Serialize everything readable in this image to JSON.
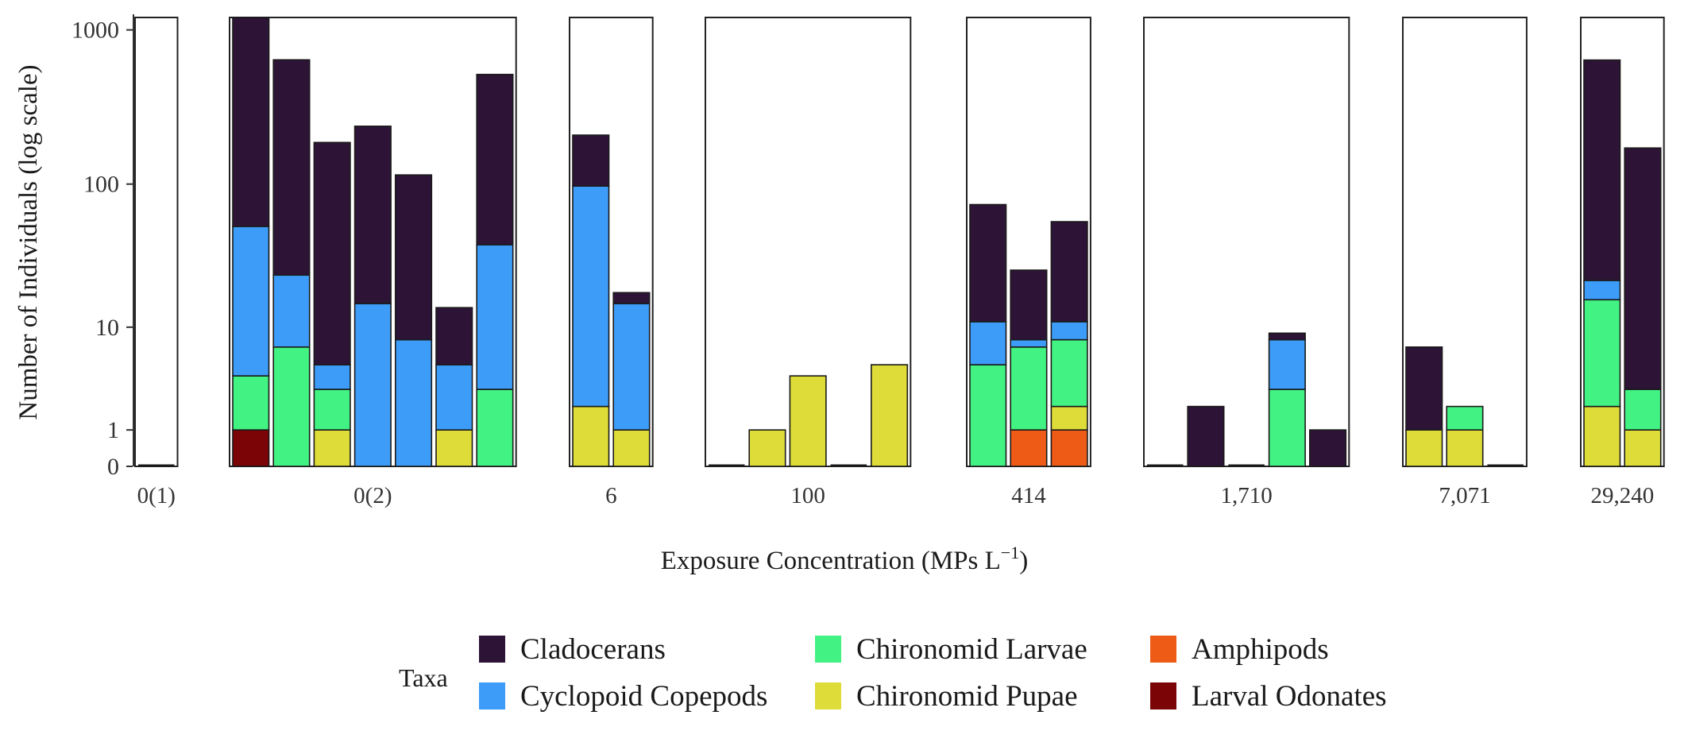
{
  "chart_data": {
    "type": "bar",
    "stacked": true,
    "title": "",
    "xlabel": "Exposure Concentration (MPs L",
    "xlabel_superscript": "−1",
    "xlabel_suffix": ")",
    "ylabel": "Number of Individuals (log scale)",
    "y_scale": "log1p",
    "ylim": [
      0,
      1200
    ],
    "y_ticks": [
      0,
      1,
      10,
      100,
      1000
    ],
    "y_tick_labels": [
      "0",
      "1",
      "10",
      "100",
      "1000"
    ],
    "grid": false,
    "legend": {
      "title": "Taxa",
      "placement": "bottom"
    },
    "taxa": [
      {
        "name": "Cladocerans",
        "color": "#2d1437"
      },
      {
        "name": "Cyclopoid Copepods",
        "color": "#3d9cf7"
      },
      {
        "name": "Chironomid Larvae",
        "color": "#42f282"
      },
      {
        "name": "Chironomid Pupae",
        "color": "#dddc38"
      },
      {
        "name": "Amphipods",
        "color": "#ee5b16"
      },
      {
        "name": "Larval Odonates",
        "color": "#7a0406"
      }
    ],
    "stack_order": [
      "Larval Odonates",
      "Amphipods",
      "Chironomid Pupae",
      "Chironomid Larvae",
      "Cyclopoid Copepods",
      "Cladocerans"
    ],
    "panels": [
      {
        "label": "0(1)",
        "replicates": [
          {
            "Cladocerans": 0
          }
        ]
      },
      {
        "label": "0(2)",
        "replicates": [
          {
            "Larval Odonates": 1,
            "Chironomid Larvae": 3,
            "Cyclopoid Copepods": 48,
            "Cladocerans": 1150
          },
          {
            "Chironomid Larvae": 7,
            "Cyclopoid Copepods": 17,
            "Cladocerans": 620
          },
          {
            "Chironomid Pupae": 1,
            "Chironomid Larvae": 2,
            "Cyclopoid Copepods": 2,
            "Cladocerans": 183
          },
          {
            "Cyclopoid Copepods": 15,
            "Cladocerans": 225
          },
          {
            "Cyclopoid Copepods": 8,
            "Cladocerans": 107
          },
          {
            "Chironomid Pupae": 1,
            "Cyclopoid Copepods": 4,
            "Cladocerans": 9
          },
          {
            "Chironomid Larvae": 3,
            "Cyclopoid Copepods": 36,
            "Cladocerans": 480
          }
        ]
      },
      {
        "label": "6",
        "replicates": [
          {
            "Chironomid Pupae": 2,
            "Cyclopoid Copepods": 95,
            "Cladocerans": 113
          },
          {
            "Chironomid Pupae": 1,
            "Cyclopoid Copepods": 14,
            "Cladocerans": 3
          }
        ]
      },
      {
        "label": "100",
        "replicates": [
          {
            "Chironomid Pupae": 0
          },
          {
            "Chironomid Pupae": 1
          },
          {
            "Chironomid Pupae": 4
          },
          {
            "Chironomid Pupae": 0
          },
          {
            "Chironomid Pupae": 5
          }
        ]
      },
      {
        "label": "414",
        "replicates": [
          {
            "Chironomid Larvae": 5,
            "Cyclopoid Copepods": 6,
            "Cladocerans": 62
          },
          {
            "Amphipods": 1,
            "Chironomid Larvae": 6,
            "Cyclopoid Copepods": 1,
            "Cladocerans": 18
          },
          {
            "Amphipods": 1,
            "Chironomid Pupae": 1,
            "Chironomid Larvae": 6,
            "Cyclopoid Copepods": 3,
            "Cladocerans": 45
          }
        ]
      },
      {
        "label": "1,710",
        "replicates": [
          {
            "Cladocerans": 0
          },
          {
            "Cladocerans": 2
          },
          {
            "Cladocerans": 0
          },
          {
            "Chironomid Larvae": 3,
            "Cyclopoid Copepods": 5,
            "Cladocerans": 1
          },
          {
            "Cladocerans": 1
          }
        ]
      },
      {
        "label": "7,071",
        "replicates": [
          {
            "Chironomid Pupae": 1,
            "Cladocerans": 6
          },
          {
            "Chironomid Pupae": 1,
            "Chironomid Larvae": 1
          },
          {
            "Cladocerans": 0
          }
        ]
      },
      {
        "label": "29,240",
        "replicates": [
          {
            "Chironomid Pupae": 2,
            "Chironomid Larvae": 14,
            "Cyclopoid Copepods": 6,
            "Cladocerans": 620
          },
          {
            "Chironomid Pupae": 1,
            "Chironomid Larvae": 2,
            "Cladocerans": 170
          }
        ]
      }
    ]
  }
}
